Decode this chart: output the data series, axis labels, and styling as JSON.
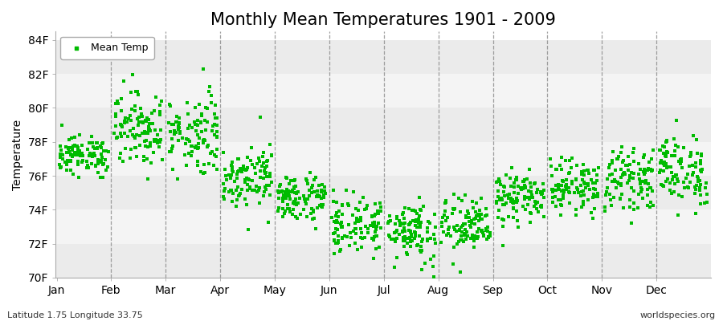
{
  "title": "Monthly Mean Temperatures 1901 - 2009",
  "ylabel": "Temperature",
  "xlabel": "",
  "bottom_left_text": "Latitude 1.75 Longitude 33.75",
  "bottom_right_text": "worldspecies.org",
  "ylim": [
    70,
    84.5
  ],
  "yticks": [
    70,
    72,
    74,
    76,
    78,
    80,
    82,
    84
  ],
  "ytick_labels": [
    "70F",
    "72F",
    "74F",
    "76F",
    "78F",
    "80F",
    "82F",
    "84F"
  ],
  "months": [
    "Jan",
    "Feb",
    "Mar",
    "Apr",
    "May",
    "Jun",
    "Jul",
    "Aug",
    "Sep",
    "Oct",
    "Nov",
    "Dec"
  ],
  "month_means": [
    77.2,
    78.8,
    78.5,
    76.0,
    74.7,
    73.1,
    72.8,
    73.0,
    74.7,
    75.4,
    75.8,
    76.3
  ],
  "month_stds": [
    0.55,
    1.1,
    1.2,
    0.9,
    0.7,
    0.85,
    0.95,
    0.85,
    0.75,
    0.75,
    0.85,
    1.05
  ],
  "n_years": 109,
  "marker_color": "#00BB00",
  "marker": "s",
  "marker_size": 4,
  "bg_color": "#FFFFFF",
  "band_colors": [
    "#EBEBEB",
    "#F4F4F4"
  ],
  "legend_label": "Mean Temp",
  "title_fontsize": 15,
  "axis_fontsize": 10,
  "tick_fontsize": 10,
  "dashed_line_color": "#888888"
}
